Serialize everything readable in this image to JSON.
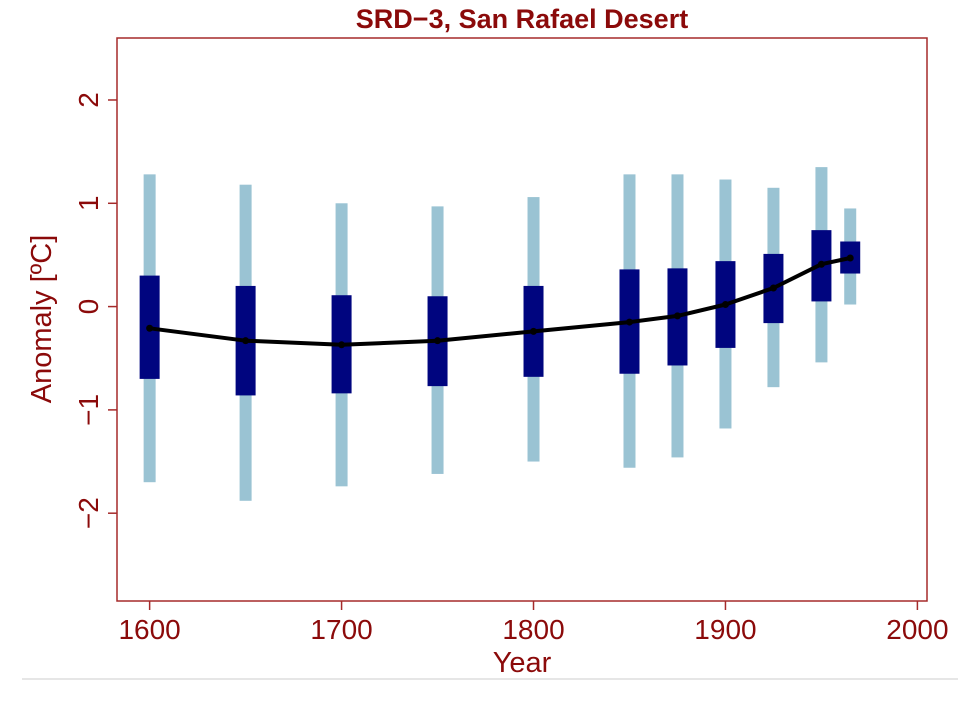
{
  "chart_data": {
    "type": "box-range",
    "title": "SRD−3, San Rafael Desert",
    "xlabel": "Year",
    "ylabel": "Anomaly [ºC]",
    "xlim": [
      1583,
      2005
    ],
    "ylim": [
      -2.85,
      2.6
    ],
    "xticks": [
      {
        "value": 1600,
        "label": "1600"
      },
      {
        "value": 1700,
        "label": "1700"
      },
      {
        "value": 1800,
        "label": "1800"
      },
      {
        "value": 1900,
        "label": "1900"
      },
      {
        "value": 2000,
        "label": "2000"
      }
    ],
    "yticks": [
      {
        "value": 2,
        "label": "2"
      },
      {
        "value": 1,
        "label": "1"
      },
      {
        "value": 0,
        "label": "0"
      },
      {
        "value": -1,
        "label": "−1"
      },
      {
        "value": -2,
        "label": "−2"
      }
    ],
    "grid": false,
    "series": [
      {
        "x": [
          1600,
          1650,
          1700,
          1750,
          1800,
          1850,
          1875,
          1900,
          1925,
          1950,
          1965
        ],
        "outer_low": [
          -1.7,
          -1.88,
          -1.74,
          -1.62,
          -1.5,
          -1.56,
          -1.46,
          -1.18,
          -0.78,
          -0.54,
          0.02
        ],
        "outer_high": [
          1.28,
          1.18,
          1.0,
          0.97,
          1.06,
          1.28,
          1.28,
          1.23,
          1.15,
          1.35,
          0.95
        ],
        "inner_low": [
          -0.7,
          -0.86,
          -0.84,
          -0.77,
          -0.68,
          -0.65,
          -0.57,
          -0.4,
          -0.16,
          0.05,
          0.32
        ],
        "inner_high": [
          0.3,
          0.2,
          0.11,
          0.1,
          0.2,
          0.36,
          0.37,
          0.44,
          0.51,
          0.74,
          0.63
        ],
        "center": [
          -0.21,
          -0.33,
          -0.37,
          -0.33,
          -0.24,
          -0.15,
          -0.09,
          0.02,
          0.18,
          0.41,
          0.47
        ]
      }
    ],
    "colors": {
      "outer": "#9ac3d3",
      "inner": "#00057f",
      "line": "#000000",
      "text": "#8b0a0a",
      "frame": "#a52a2a"
    }
  }
}
